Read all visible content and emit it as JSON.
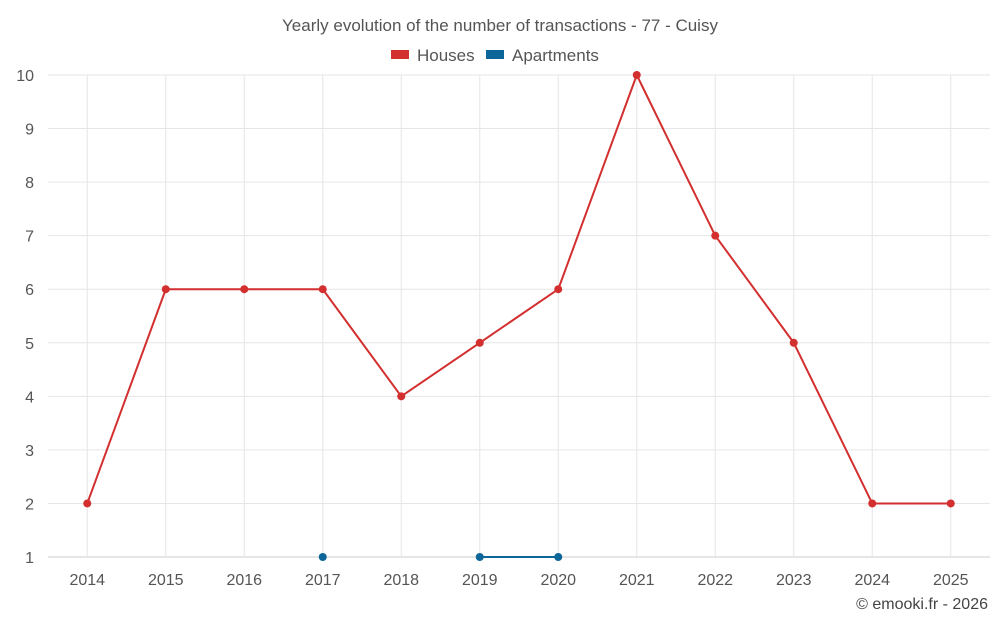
{
  "chart_data": {
    "type": "line",
    "title": "Yearly evolution of the number of transactions - 77 - Cuisy",
    "categories": [
      "2014",
      "2015",
      "2016",
      "2017",
      "2018",
      "2019",
      "2020",
      "2021",
      "2022",
      "2023",
      "2024",
      "2025"
    ],
    "ylim": [
      1,
      10
    ],
    "yticks": [
      1,
      2,
      3,
      4,
      5,
      6,
      7,
      8,
      9,
      10
    ],
    "grid": true,
    "legend_position": "top-center",
    "series": [
      {
        "name": "Houses",
        "color": "#d32f2f",
        "values": [
          2,
          6,
          6,
          6,
          4,
          5,
          6,
          10,
          7,
          5,
          2,
          2
        ]
      },
      {
        "name": "Apartments",
        "color": "#0d6699",
        "values": [
          null,
          null,
          null,
          1,
          null,
          1,
          1,
          null,
          null,
          null,
          null,
          null
        ]
      }
    ]
  },
  "credit": "© emooki.fr - 2026"
}
